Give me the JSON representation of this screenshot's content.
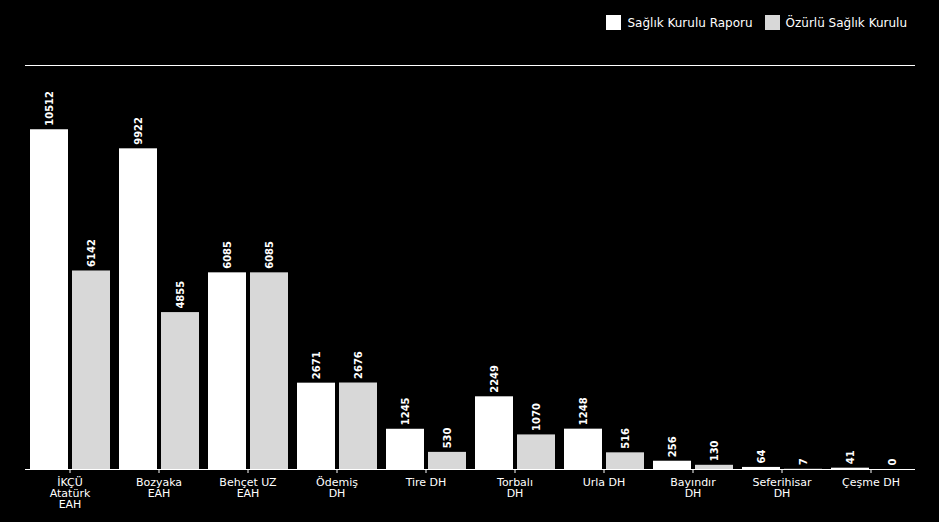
{
  "chart_data": {
    "type": "bar",
    "categories": [
      "İKÇÜ\nAtatürk\nEAH",
      "Bozyaka\nEAH",
      "Behçet UZ\nEAH",
      "Ödemiş\nDH",
      "Tire DH",
      "Torbalı\nDH",
      "Urla DH",
      "Bayındır\nDH",
      "Seferihisar\nDH",
      "Çeşme DH"
    ],
    "series": [
      {
        "name": "Sağlık Kurulu Raporu",
        "color": "#ffffff",
        "values": [
          10512,
          9922,
          6085,
          2671,
          1245,
          2249,
          1248,
          256,
          64,
          41
        ]
      },
      {
        "name": "Özürlü Sağlık Kurulu",
        "color": "#d8d8d8",
        "values": [
          6142,
          4855,
          6085,
          2676,
          530,
          1070,
          516,
          130,
          7,
          0
        ]
      }
    ],
    "ylim": [
      0,
      12500
    ],
    "legend": "upper right",
    "data_labels": true,
    "tick_labels": "x",
    "grid": false
  }
}
